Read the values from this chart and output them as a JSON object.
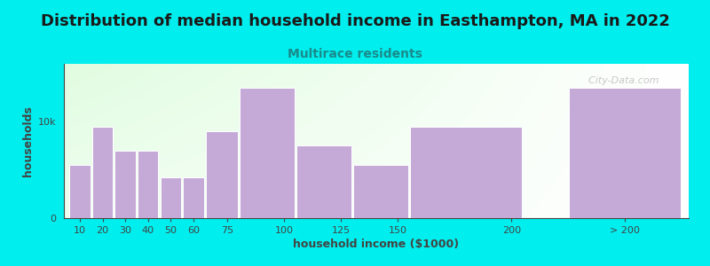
{
  "title": "Distribution of median household income in Easthampton, MA in 2022",
  "subtitle": "Multirace residents",
  "xlabel": "household income ($1000)",
  "ylabel": "households",
  "background_color": "#00EEEE",
  "bar_color": "#c5aad8",
  "bar_edge_color": "#ffffff",
  "title_color": "#1a1a1a",
  "subtitle_color": "#1a8a8a",
  "axis_label_color": "#444444",
  "tick_color": "#444444",
  "values": [
    5500,
    9500,
    7000,
    7000,
    4200,
    4200,
    9000,
    13500,
    7500,
    5500,
    9500,
    13500
  ],
  "bar_lefts": [
    5,
    15,
    25,
    35,
    45,
    55,
    65,
    80,
    105,
    130,
    155,
    225
  ],
  "bar_widths": [
    10,
    10,
    10,
    10,
    10,
    10,
    15,
    25,
    25,
    25,
    50,
    50
  ],
  "xtick_positions": [
    10,
    20,
    30,
    40,
    50,
    60,
    75,
    100,
    125,
    150,
    200,
    250
  ],
  "xtick_labels": [
    "10",
    "20",
    "30",
    "40",
    "50",
    "60",
    "75",
    "100",
    "125",
    "150",
    "200",
    "> 200"
  ],
  "ylim": [
    0,
    16000
  ],
  "xlim": [
    3,
    278
  ],
  "ytick_positions": [
    0,
    10000
  ],
  "ytick_labels": [
    "0",
    "10k"
  ],
  "title_fontsize": 13,
  "subtitle_fontsize": 10,
  "axis_label_fontsize": 9,
  "tick_fontsize": 8,
  "watermark_text": "  City-Data.com",
  "watermark_color": "#bbbbbb",
  "gradient_left_color": "#d8f0d0",
  "gradient_right_color": "#f8f8f8"
}
